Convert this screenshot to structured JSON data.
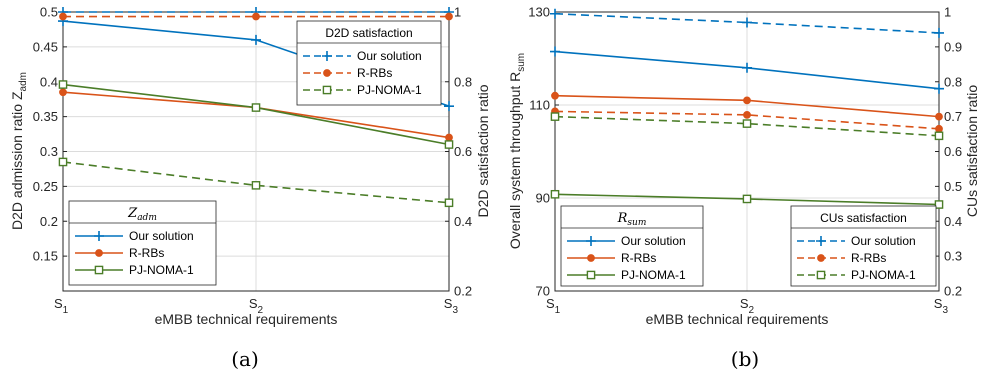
{
  "colors": {
    "blue": "#0072BD",
    "orange": "#D95319",
    "green": "#4B7D28",
    "grid": "#dcdcdc",
    "axis": "#262626"
  },
  "captions": [
    "(a)",
    "(b)"
  ],
  "chart_data": [
    {
      "type": "line",
      "xlabel": "eMBB technical requirements",
      "categories": [
        "S1",
        "S2",
        "S3"
      ],
      "ylabel_left": "D2D admission ratio Z_adm",
      "ylabel_right": "D2D satisfaction ratio",
      "ylim_left": [
        0.1,
        0.5
      ],
      "yticks_left": [
        "0.15",
        "0.2",
        "0.25",
        "0.3",
        "0.35",
        "0.4",
        "0.45",
        "0.5"
      ],
      "ylim_right": [
        0.2,
        1.0
      ],
      "yticks_right": [
        "0.2",
        "0.4",
        "0.6",
        "0.8",
        "1"
      ],
      "grid": true,
      "legend_left": {
        "title": "Z_adm",
        "placement": "bottom-left",
        "entries": [
          "Our solution",
          "R-RBs",
          "PJ-NOMA-1"
        ]
      },
      "legend_right": {
        "title": "D2D satisfaction",
        "placement": "top-right",
        "entries": [
          "Our solution",
          "R-RBs",
          "PJ-NOMA-1"
        ]
      },
      "series": [
        {
          "name": "Our solution",
          "axis": "left",
          "style": "solid",
          "marker": "plus",
          "values": [
            0.487,
            0.46,
            0.365
          ]
        },
        {
          "name": "R-RBs",
          "axis": "left",
          "style": "solid",
          "marker": "dot",
          "values": [
            0.385,
            0.363,
            0.32
          ]
        },
        {
          "name": "PJ-NOMA-1",
          "axis": "left",
          "style": "solid",
          "marker": "square",
          "values": [
            0.396,
            0.363,
            0.31
          ]
        },
        {
          "name": "Our solution",
          "axis": "right",
          "style": "dashed",
          "marker": "plus",
          "values": [
            1.0,
            1.0,
            1.0
          ]
        },
        {
          "name": "R-RBs",
          "axis": "right",
          "style": "dashed",
          "marker": "dot",
          "values": [
            0.987,
            0.987,
            0.987
          ]
        },
        {
          "name": "PJ-NOMA-1",
          "axis": "right",
          "style": "dashed",
          "marker": "square",
          "values": [
            0.57,
            0.503,
            0.453
          ]
        }
      ]
    },
    {
      "type": "line",
      "xlabel": "eMBB technical requirements",
      "categories": [
        "S1",
        "S2",
        "S3"
      ],
      "ylabel_left": "Overall system throughput R_sum",
      "ylabel_right": "CUs satisfaction ratio",
      "ylim_left": [
        70,
        130
      ],
      "yticks_left": [
        "70",
        "90",
        "110",
        "130"
      ],
      "ylim_right": [
        0.2,
        1.0
      ],
      "yticks_right": [
        "0.2",
        "0.3",
        "0.4",
        "0.5",
        "0.6",
        "0.7",
        "0.8",
        "0.9",
        "1"
      ],
      "grid": true,
      "legend_left": {
        "title": "R_sum",
        "placement": "bottom-left",
        "entries": [
          "Our solution",
          "R-RBs",
          "PJ-NOMA-1"
        ]
      },
      "legend_right": {
        "title": "CUs satisfaction",
        "placement": "bottom-right",
        "entries": [
          "Our solution",
          "R-RBs",
          "PJ-NOMA-1"
        ]
      },
      "series": [
        {
          "name": "Our solution",
          "axis": "left",
          "style": "solid",
          "marker": "plus",
          "values": [
            121.5,
            118,
            113.5
          ]
        },
        {
          "name": "R-RBs",
          "axis": "left",
          "style": "solid",
          "marker": "dot",
          "values": [
            112,
            111,
            107.5
          ]
        },
        {
          "name": "PJ-NOMA-1",
          "axis": "left",
          "style": "solid",
          "marker": "square",
          "values": [
            90.8,
            89.8,
            88.6
          ]
        },
        {
          "name": "Our solution",
          "axis": "right",
          "style": "dashed",
          "marker": "plus",
          "values": [
            0.995,
            0.97,
            0.94
          ]
        },
        {
          "name": "R-RBs",
          "axis": "right",
          "style": "dashed",
          "marker": "dot",
          "values": [
            0.715,
            0.705,
            0.665
          ]
        },
        {
          "name": "PJ-NOMA-1",
          "axis": "right",
          "style": "dashed",
          "marker": "square",
          "values": [
            0.7,
            0.68,
            0.645
          ]
        }
      ]
    }
  ]
}
